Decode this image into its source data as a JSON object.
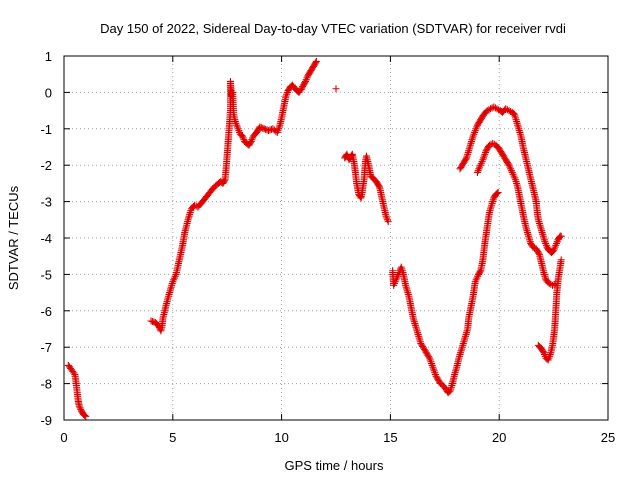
{
  "chart_data": {
    "type": "scatter",
    "title": "Day 150 of 2022, Sidereal Day-to-day VTEC variation (SDTVAR) for receiver rvdi",
    "xlabel": "GPS time / hours",
    "ylabel": "SDTVAR / TECUs",
    "xlim": [
      0,
      25
    ],
    "ylim": [
      -9,
      1
    ],
    "xticks": [
      0,
      5,
      10,
      15,
      20,
      25
    ],
    "xtick_labels": [
      "0",
      "5",
      "10",
      "15",
      "20",
      "25"
    ],
    "yticks": [
      1,
      0,
      -1,
      -2,
      -3,
      -4,
      -5,
      -6,
      -7,
      -8,
      -9
    ],
    "ytick_labels": [
      "1",
      "0",
      "-1",
      "-2",
      "-3",
      "-4",
      "-5",
      "-6",
      "-7",
      "-8",
      "-9"
    ],
    "grid": true,
    "marker": "+",
    "color": "#e00000",
    "series": [
      {
        "segments": [
          [
            [
              0.2,
              -7.5
            ],
            [
              0.35,
              -7.62
            ],
            [
              0.5,
              -7.75
            ],
            [
              0.55,
              -7.95
            ],
            [
              0.6,
              -8.2
            ],
            [
              0.65,
              -8.45
            ],
            [
              0.7,
              -8.62
            ],
            [
              0.8,
              -8.75
            ],
            [
              0.9,
              -8.85
            ],
            [
              1.0,
              -8.9
            ]
          ],
          [
            [
              4.0,
              -6.28
            ],
            [
              4.2,
              -6.32
            ],
            [
              4.35,
              -6.42
            ],
            [
              4.45,
              -6.55
            ],
            [
              4.5,
              -6.45
            ],
            [
              4.55,
              -6.2
            ],
            [
              4.65,
              -5.95
            ],
            [
              4.8,
              -5.6
            ],
            [
              5.0,
              -5.2
            ],
            [
              5.15,
              -5.0
            ],
            [
              5.3,
              -4.6
            ],
            [
              5.45,
              -4.2
            ],
            [
              5.55,
              -3.85
            ],
            [
              5.7,
              -3.5
            ],
            [
              5.85,
              -3.2
            ],
            [
              6.0,
              -3.1
            ],
            [
              6.15,
              -3.15
            ],
            [
              6.3,
              -3.05
            ],
            [
              6.5,
              -2.9
            ],
            [
              6.7,
              -2.75
            ],
            [
              6.9,
              -2.6
            ],
            [
              7.1,
              -2.5
            ],
            [
              7.2,
              -2.45
            ],
            [
              7.3,
              -2.5
            ],
            [
              7.4,
              -2.4
            ],
            [
              7.45,
              -2.1
            ],
            [
              7.5,
              -1.7
            ],
            [
              7.55,
              -1.3
            ],
            [
              7.6,
              -0.9
            ],
            [
              7.65,
              -0.5
            ],
            [
              7.65,
              0.3
            ],
            [
              7.7,
              -0.1
            ],
            [
              7.75,
              0.0
            ],
            [
              7.8,
              -0.6
            ],
            [
              7.85,
              -0.75
            ],
            [
              7.9,
              -0.85
            ],
            [
              8.0,
              -1.0
            ],
            [
              8.1,
              -1.15
            ],
            [
              8.2,
              -1.2
            ],
            [
              8.3,
              -1.35
            ],
            [
              8.4,
              -1.4
            ],
            [
              8.5,
              -1.45
            ],
            [
              8.6,
              -1.35
            ],
            [
              8.7,
              -1.2
            ],
            [
              8.85,
              -1.1
            ],
            [
              9.0,
              -0.95
            ],
            [
              9.2,
              -1.0
            ],
            [
              9.4,
              -1.05
            ],
            [
              9.6,
              -1.0
            ],
            [
              9.8,
              -1.1
            ],
            [
              9.9,
              -0.95
            ],
            [
              10.0,
              -0.7
            ],
            [
              10.1,
              -0.4
            ],
            [
              10.2,
              -0.1
            ],
            [
              10.3,
              0.05
            ],
            [
              10.4,
              0.15
            ],
            [
              10.5,
              0.2
            ],
            [
              10.6,
              0.12
            ],
            [
              10.7,
              0.05
            ],
            [
              10.8,
              0.0
            ],
            [
              10.9,
              0.08
            ],
            [
              11.0,
              0.2
            ],
            [
              11.1,
              0.3
            ],
            [
              11.2,
              0.45
            ],
            [
              11.35,
              0.6
            ],
            [
              11.5,
              0.75
            ],
            [
              11.6,
              0.85
            ]
          ],
          [
            [
              12.5,
              0.1
            ]
          ],
          [
            [
              12.9,
              -1.8
            ],
            [
              13.0,
              -1.7
            ],
            [
              13.1,
              -1.85
            ],
            [
              13.2,
              -1.75
            ],
            [
              13.25,
              -1.7
            ],
            [
              13.35,
              -2.0
            ],
            [
              13.45,
              -2.5
            ],
            [
              13.55,
              -2.8
            ],
            [
              13.65,
              -2.9
            ],
            [
              13.7,
              -2.75
            ],
            [
              13.8,
              -2.35
            ],
            [
              13.85,
              -1.9
            ],
            [
              13.9,
              -1.75
            ],
            [
              14.0,
              -2.0
            ],
            [
              14.1,
              -2.3
            ],
            [
              14.2,
              -2.35
            ],
            [
              14.35,
              -2.45
            ],
            [
              14.5,
              -2.6
            ],
            [
              14.65,
              -3.0
            ],
            [
              14.8,
              -3.4
            ],
            [
              14.9,
              -3.55
            ]
          ],
          [
            [
              15.1,
              -4.9
            ],
            [
              15.15,
              -5.3
            ],
            [
              15.5,
              -4.8
            ],
            [
              15.6,
              -5.0
            ],
            [
              15.7,
              -5.3
            ],
            [
              15.85,
              -5.6
            ],
            [
              15.95,
              -5.9
            ],
            [
              16.05,
              -6.2
            ],
            [
              16.2,
              -6.5
            ],
            [
              16.4,
              -6.9
            ],
            [
              16.6,
              -7.1
            ],
            [
              16.8,
              -7.3
            ],
            [
              16.95,
              -7.55
            ],
            [
              17.1,
              -7.8
            ],
            [
              17.3,
              -8.0
            ],
            [
              17.5,
              -8.1
            ],
            [
              17.65,
              -8.25
            ],
            [
              17.75,
              -8.2
            ],
            [
              17.85,
              -8.0
            ],
            [
              17.95,
              -7.75
            ],
            [
              18.05,
              -7.55
            ],
            [
              18.15,
              -7.3
            ],
            [
              18.25,
              -7.1
            ],
            [
              18.35,
              -6.9
            ],
            [
              18.45,
              -6.7
            ],
            [
              18.55,
              -6.5
            ],
            [
              18.6,
              -6.2
            ],
            [
              18.7,
              -5.9
            ],
            [
              18.8,
              -5.6
            ],
            [
              18.9,
              -5.2
            ],
            [
              19.05,
              -5.0
            ],
            [
              19.15,
              -4.9
            ],
            [
              19.25,
              -4.6
            ],
            [
              19.35,
              -4.1
            ],
            [
              19.45,
              -3.7
            ],
            [
              19.55,
              -3.3
            ],
            [
              19.65,
              -3.1
            ],
            [
              19.75,
              -2.9
            ],
            [
              19.85,
              -2.8
            ],
            [
              19.95,
              -2.75
            ]
          ],
          [
            [
              18.2,
              -2.1
            ],
            [
              18.35,
              -1.95
            ],
            [
              18.5,
              -1.8
            ],
            [
              18.6,
              -1.6
            ],
            [
              18.7,
              -1.4
            ],
            [
              18.8,
              -1.2
            ],
            [
              18.9,
              -1.05
            ],
            [
              19.0,
              -0.9
            ],
            [
              19.15,
              -0.75
            ],
            [
              19.3,
              -0.6
            ],
            [
              19.45,
              -0.5
            ],
            [
              19.6,
              -0.45
            ],
            [
              19.75,
              -0.4
            ],
            [
              19.9,
              -0.45
            ],
            [
              20.05,
              -0.5
            ],
            [
              20.15,
              -0.55
            ],
            [
              20.3,
              -0.45
            ],
            [
              20.45,
              -0.5
            ],
            [
              20.6,
              -0.55
            ],
            [
              20.7,
              -0.6
            ],
            [
              20.8,
              -0.8
            ],
            [
              20.9,
              -1.0
            ],
            [
              21.0,
              -1.2
            ],
            [
              21.1,
              -1.5
            ],
            [
              21.2,
              -1.75
            ],
            [
              21.3,
              -2.0
            ],
            [
              21.4,
              -2.25
            ],
            [
              21.5,
              -2.5
            ],
            [
              21.6,
              -2.75
            ],
            [
              21.7,
              -3.0
            ],
            [
              21.75,
              -3.3
            ],
            [
              21.8,
              -3.5
            ],
            [
              21.9,
              -3.7
            ],
            [
              22.0,
              -3.9
            ],
            [
              22.1,
              -4.1
            ],
            [
              22.2,
              -4.25
            ],
            [
              22.3,
              -4.35
            ],
            [
              22.4,
              -4.4
            ],
            [
              22.5,
              -4.35
            ],
            [
              22.6,
              -4.2
            ],
            [
              22.7,
              -4.05
            ],
            [
              22.8,
              -3.95
            ],
            [
              22.85,
              -3.95
            ]
          ],
          [
            [
              19.0,
              -2.2
            ],
            [
              19.1,
              -2.05
            ],
            [
              19.25,
              -1.85
            ],
            [
              19.4,
              -1.6
            ],
            [
              19.55,
              -1.45
            ],
            [
              19.7,
              -1.4
            ],
            [
              19.85,
              -1.45
            ],
            [
              20.0,
              -1.55
            ],
            [
              20.15,
              -1.7
            ],
            [
              20.3,
              -1.85
            ],
            [
              20.45,
              -2.0
            ],
            [
              20.6,
              -2.2
            ],
            [
              20.75,
              -2.4
            ],
            [
              20.85,
              -2.6
            ],
            [
              20.95,
              -2.9
            ],
            [
              21.05,
              -3.2
            ],
            [
              21.15,
              -3.5
            ],
            [
              21.25,
              -3.75
            ],
            [
              21.35,
              -3.95
            ],
            [
              21.45,
              -4.15
            ],
            [
              21.55,
              -4.25
            ],
            [
              21.7,
              -4.3
            ],
            [
              21.85,
              -4.45
            ],
            [
              21.95,
              -4.7
            ],
            [
              22.05,
              -4.95
            ],
            [
              22.15,
              -5.15
            ],
            [
              22.3,
              -5.25
            ],
            [
              22.45,
              -5.3
            ],
            [
              22.6,
              -5.25
            ]
          ],
          [
            [
              21.8,
              -6.95
            ],
            [
              21.95,
              -7.05
            ],
            [
              22.05,
              -7.15
            ],
            [
              22.15,
              -7.3
            ],
            [
              22.25,
              -7.35
            ],
            [
              22.35,
              -7.2
            ],
            [
              22.45,
              -6.95
            ],
            [
              22.55,
              -6.5
            ],
            [
              22.6,
              -6.0
            ],
            [
              22.65,
              -5.5
            ],
            [
              22.72,
              -5.1
            ],
            [
              22.8,
              -4.8
            ],
            [
              22.85,
              -4.6
            ]
          ]
        ]
      }
    ]
  }
}
